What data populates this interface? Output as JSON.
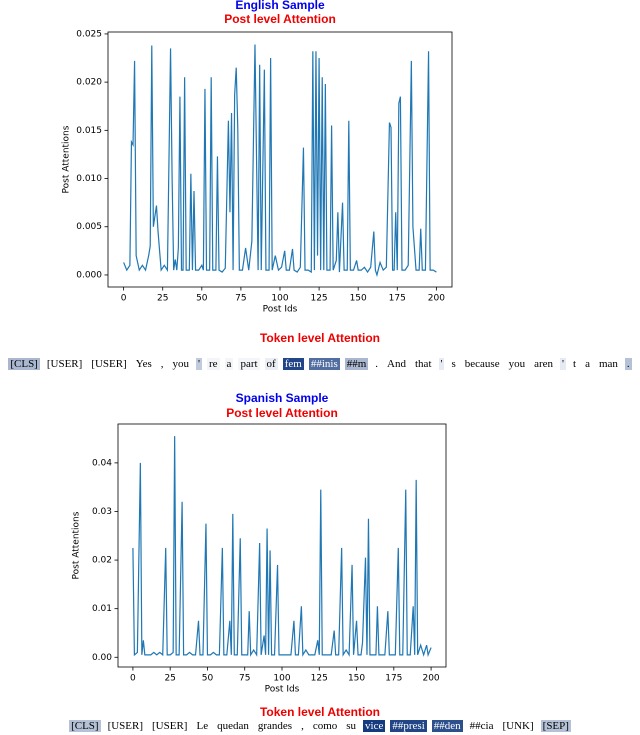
{
  "chart_data": [
    {
      "type": "line",
      "title": "English Sample",
      "subtitle": "Post level Attention",
      "x_label": "Post Ids",
      "y_label": "Post Attentions",
      "color": "#1f77b4",
      "xlim": [
        -10,
        210
      ],
      "ylim": [
        -0.00125,
        0.0252
      ],
      "xticks": [
        0,
        25,
        50,
        75,
        100,
        125,
        150,
        175,
        200
      ],
      "yticks": [
        {
          "value": 0,
          "label": "0.000"
        },
        0.005,
        {
          "value": 0.01,
          "label": "0.010"
        },
        0.015,
        {
          "value": 0.02,
          "label": "0.020"
        },
        0.025
      ],
      "x": [
        0,
        2,
        4,
        5,
        6,
        7,
        8,
        10,
        12,
        14,
        16,
        17,
        18,
        19,
        21,
        22,
        24,
        26,
        28,
        30,
        31,
        32,
        33,
        34,
        35,
        36,
        37,
        38,
        39,
        40,
        42,
        43,
        44,
        45,
        46,
        48,
        50,
        51,
        52,
        53,
        55,
        56,
        57,
        59,
        60,
        61,
        63,
        65,
        67,
        68,
        69,
        70,
        71,
        72,
        73,
        74,
        76,
        78,
        80,
        82,
        84,
        85,
        86,
        87,
        88,
        90,
        91,
        93,
        94,
        95,
        97,
        99,
        101,
        103,
        104,
        106,
        108,
        109,
        111,
        113,
        115,
        116,
        118,
        120,
        121,
        122,
        123,
        124,
        125,
        126,
        127,
        128,
        129,
        130,
        132,
        133,
        134,
        136,
        137,
        138,
        140,
        141,
        143,
        144,
        145,
        147,
        149,
        150,
        152,
        154,
        156,
        158,
        160,
        161,
        162,
        164,
        166,
        168,
        170,
        171,
        172,
        173,
        174,
        175,
        176,
        177,
        178,
        180,
        182,
        184,
        185,
        187,
        189,
        190,
        191,
        193,
        195,
        196,
        198,
        200
      ],
      "values": [
        0.0013,
        0.0005,
        0.001,
        0.0138,
        0.0135,
        0.0222,
        0.002,
        0.0005,
        0.001,
        0.0005,
        0.002,
        0.003,
        0.0238,
        0.005,
        0.0072,
        0.0045,
        0.0005,
        0.001,
        0.0005,
        0.0235,
        0.01,
        0.0005,
        0.0016,
        0.0005,
        0.0028,
        0.0185,
        0.0005,
        0.0005,
        0.0205,
        0.0005,
        0.0005,
        0.0105,
        0.0005,
        0.0087,
        0.0005,
        0.0005,
        0.001,
        0.0005,
        0.0193,
        0.0005,
        0.0005,
        0.0205,
        0.0005,
        0.0005,
        0.0123,
        0.0005,
        0.0003,
        0.0007,
        0.016,
        0.0065,
        0.0168,
        0.0005,
        0.0187,
        0.0215,
        0.0152,
        0.0005,
        0.0005,
        0.0028,
        0.0005,
        0.0035,
        0.0239,
        0.012,
        0.0005,
        0.0218,
        0.0005,
        0.0213,
        0.0005,
        0.0005,
        0.0225,
        0.0005,
        0.002,
        0.0005,
        0.0008,
        0.0025,
        0.0005,
        0.0005,
        0.0027,
        0.0005,
        0.0003,
        0.0008,
        0.0132,
        0.0005,
        0.0005,
        0.0003,
        0.0232,
        0.0005,
        0.0232,
        0.002,
        0.0225,
        0.0005,
        0.0205,
        0.0005,
        0.0198,
        0.0005,
        0.0005,
        0.0155,
        0.0005,
        0.0015,
        0.0065,
        0.0003,
        0.0075,
        0.0005,
        0.0005,
        0.016,
        0.0005,
        0.0005,
        0.0015,
        0.0005,
        0.0005,
        0.0008,
        0.0003,
        0.0008,
        0.0045,
        0.0005,
        0.0,
        0.0013,
        0.0005,
        0.0008,
        0.0158,
        0.0153,
        0.0005,
        0.0005,
        0.0065,
        0.0005,
        0.0178,
        0.0185,
        0.0005,
        0.0005,
        0.001,
        0.0222,
        0.005,
        0.0005,
        0.0005,
        0.0048,
        0.0005,
        0.0005,
        0.0232,
        0.0005,
        0.0005,
        0.0003
      ]
    },
    {
      "type": "line",
      "title": "Spanish Sample",
      "subtitle": "Post level Attention",
      "x_label": "Post Ids",
      "y_label": "Post Attentions",
      "color": "#1f77b4",
      "xlim": [
        -10,
        210
      ],
      "ylim": [
        -0.002,
        0.048
      ],
      "xticks": [
        0,
        25,
        50,
        75,
        100,
        125,
        150,
        175,
        200
      ],
      "yticks": [
        {
          "value": 0,
          "label": "0.00"
        },
        0.01,
        0.02,
        0.03,
        0.04
      ],
      "x": [
        0,
        1,
        3,
        5,
        6,
        7,
        8,
        10,
        12,
        14,
        16,
        18,
        20,
        22,
        23,
        25,
        27,
        28,
        29,
        31,
        33,
        34,
        36,
        38,
        40,
        42,
        44,
        45,
        47,
        49,
        50,
        52,
        54,
        56,
        58,
        60,
        61,
        63,
        65,
        66,
        67,
        68,
        70,
        72,
        73,
        75,
        77,
        78,
        79,
        81,
        83,
        85,
        86,
        88,
        89,
        90,
        91,
        92,
        93,
        95,
        97,
        98,
        100,
        102,
        104,
        106,
        108,
        109,
        111,
        113,
        114,
        116,
        118,
        120,
        122,
        124,
        125,
        126,
        127,
        129,
        131,
        133,
        135,
        136,
        138,
        140,
        141,
        143,
        145,
        147,
        148,
        150,
        151,
        153,
        154,
        156,
        157,
        158,
        159,
        161,
        163,
        164,
        165,
        167,
        169,
        171,
        172,
        174,
        176,
        178,
        179,
        181,
        183,
        184,
        186,
        188,
        189,
        190,
        191,
        193,
        195,
        197,
        198,
        200
      ],
      "values": [
        0.0225,
        0.0005,
        0.001,
        0.04,
        0.0005,
        0.0035,
        0.0005,
        0.0005,
        0.0005,
        0.001,
        0.0005,
        0.001,
        0.0005,
        0.0225,
        0.0005,
        0.0005,
        0.001,
        0.0455,
        0.0005,
        0.0005,
        0.032,
        0.0005,
        0.0005,
        0.001,
        0.0005,
        0.0005,
        0.0075,
        0.0005,
        0.0005,
        0.0275,
        0.0005,
        0.0005,
        0.001,
        0.0005,
        0.0005,
        0.0225,
        0.0005,
        0.0005,
        0.0075,
        0.0005,
        0.0295,
        0.0005,
        0.0005,
        0.0245,
        0.0005,
        0.0005,
        0.0005,
        0.0095,
        0.0005,
        0.0015,
        0.0005,
        0.0235,
        0.0005,
        0.0045,
        0.0005,
        0.0265,
        0.0005,
        0.022,
        0.0005,
        0.0005,
        0.019,
        0.0005,
        0.0005,
        0.0005,
        0.0005,
        0.0005,
        0.0075,
        0.0005,
        0.0005,
        0.0105,
        0.0005,
        0.0015,
        0.0005,
        0.0005,
        0.0005,
        0.0035,
        0.0005,
        0.0345,
        0.0005,
        0.0005,
        0.0005,
        0.0005,
        0.0055,
        0.0005,
        0.0005,
        0.0225,
        0.0005,
        0.0015,
        0.0005,
        0.019,
        0.0005,
        0.0075,
        0.0005,
        0.0005,
        0.003,
        0.0205,
        0.0005,
        0.0285,
        0.0005,
        0.0005,
        0.0005,
        0.0105,
        0.0005,
        0.0005,
        0.0005,
        0.0095,
        0.0005,
        0.0005,
        0.0005,
        0.0225,
        0.0005,
        0.0005,
        0.0345,
        0.0005,
        0.0005,
        0.0105,
        0.0005,
        0.0365,
        0.0005,
        0.0025,
        0.0005,
        0.0025,
        0.0005,
        0.002
      ]
    }
  ],
  "token_sections": [
    {
      "title": "Token level Attention",
      "tokens": [
        {
          "text": "[CLS]",
          "weight": 0.35
        },
        {
          "text": "[USER]",
          "weight": 0
        },
        {
          "text": "[USER]",
          "weight": 0
        },
        {
          "text": "Yes",
          "weight": 0
        },
        {
          "text": ",",
          "weight": 0
        },
        {
          "text": "you",
          "weight": 0
        },
        {
          "text": "'",
          "weight": 0.25
        },
        {
          "text": "re",
          "weight": 0.05
        },
        {
          "text": "a",
          "weight": 0.05
        },
        {
          "text": "part",
          "weight": 0.05
        },
        {
          "text": "of",
          "weight": 0.08
        },
        {
          "text": "fem",
          "weight": 0.9
        },
        {
          "text": "##inis",
          "weight": 0.7
        },
        {
          "text": "##m",
          "weight": 0.35
        },
        {
          "text": ".",
          "weight": 0
        },
        {
          "text": "And",
          "weight": 0
        },
        {
          "text": "that",
          "weight": 0
        },
        {
          "text": "'",
          "weight": 0.1
        },
        {
          "text": "s",
          "weight": 0
        },
        {
          "text": "because",
          "weight": 0
        },
        {
          "text": "you",
          "weight": 0
        },
        {
          "text": "aren",
          "weight": 0
        },
        {
          "text": "'",
          "weight": 0.1
        },
        {
          "text": "t",
          "weight": 0
        },
        {
          "text": "a",
          "weight": 0
        },
        {
          "text": "man",
          "weight": 0
        },
        {
          "text": ".",
          "weight": 0.3
        }
      ]
    },
    {
      "title": "Token level Attention",
      "tokens": [
        {
          "text": "[CLS]",
          "weight": 0.3
        },
        {
          "text": "[USER]",
          "weight": 0
        },
        {
          "text": "[USER]",
          "weight": 0
        },
        {
          "text": "Le",
          "weight": 0
        },
        {
          "text": "quedan",
          "weight": 0
        },
        {
          "text": "grandes",
          "weight": 0
        },
        {
          "text": ",",
          "weight": 0
        },
        {
          "text": "como",
          "weight": 0
        },
        {
          "text": "su",
          "weight": 0
        },
        {
          "text": "vice",
          "weight": 0.95
        },
        {
          "text": "##presi",
          "weight": 0.9
        },
        {
          "text": "##den",
          "weight": 0.85
        },
        {
          "text": "##cia",
          "weight": 0
        },
        {
          "text": "[UNK]",
          "weight": 0
        },
        {
          "text": "[SEP]",
          "weight": 0.3
        }
      ]
    }
  ]
}
